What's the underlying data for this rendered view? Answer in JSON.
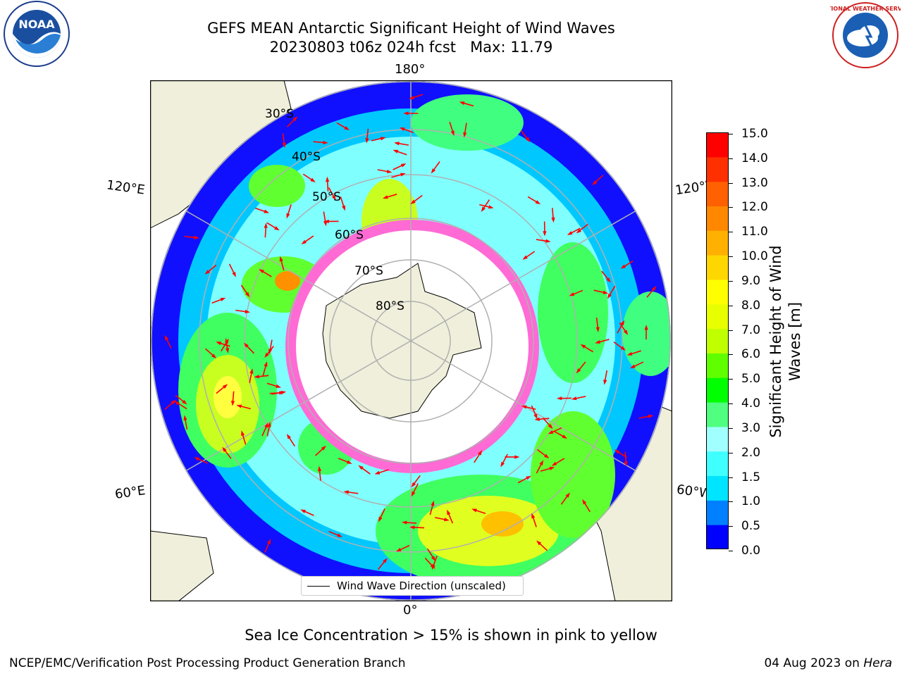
{
  "title_line1": "GEFS MEAN Antarctic Significant Height of Wind Waves",
  "title_line2": "20230803 t06z 024h fcst   Max: 11.79",
  "logos": {
    "left": "NOAA",
    "right": "NATIONAL WEATHER SERVICE"
  },
  "map": {
    "longitude_labels": {
      "top": "180°",
      "bottom": "0°",
      "left_upper": "120°E",
      "left_lower": "60°E",
      "right_upper": "120°W",
      "right_lower": "60°W"
    },
    "latitude_labels": [
      "30°S",
      "40°S",
      "50°S",
      "60°S",
      "70°S",
      "80°S"
    ],
    "legend": "Wind Wave Direction (unscaled)",
    "colors": {
      "land": "#efefdb",
      "ocean_missing": "#ffffff",
      "grid": "#b0b0b0",
      "arrow": "#ff0000"
    }
  },
  "colorbar": {
    "label": "Significant Height of Wind Waves [m]",
    "ticks": [
      "15.0",
      "14.0",
      "13.0",
      "12.0",
      "11.0",
      "10.0",
      "9.0",
      "8.0",
      "7.0",
      "6.0",
      "5.0",
      "4.0",
      "3.0",
      "2.0",
      "1.5",
      "1.0",
      "0.5",
      "0.0"
    ],
    "colors": [
      "#0000ff",
      "#0080ff",
      "#00e5ff",
      "#40ffff",
      "#a0ffff",
      "#50ff80",
      "#00ff00",
      "#60ff00",
      "#c0ff00",
      "#e8ff00",
      "#ffff00",
      "#ffd700",
      "#ffb000",
      "#ff8800",
      "#ff6000",
      "#ff3000",
      "#ff0000"
    ]
  },
  "footer": {
    "note": "Sea Ice Concentration > 15% is shown in pink to yellow",
    "left": "NCEP/EMC/Verification Post Processing Product Generation Branch",
    "right_date": "04 Aug 2023 on ",
    "right_machine": "Hera"
  }
}
